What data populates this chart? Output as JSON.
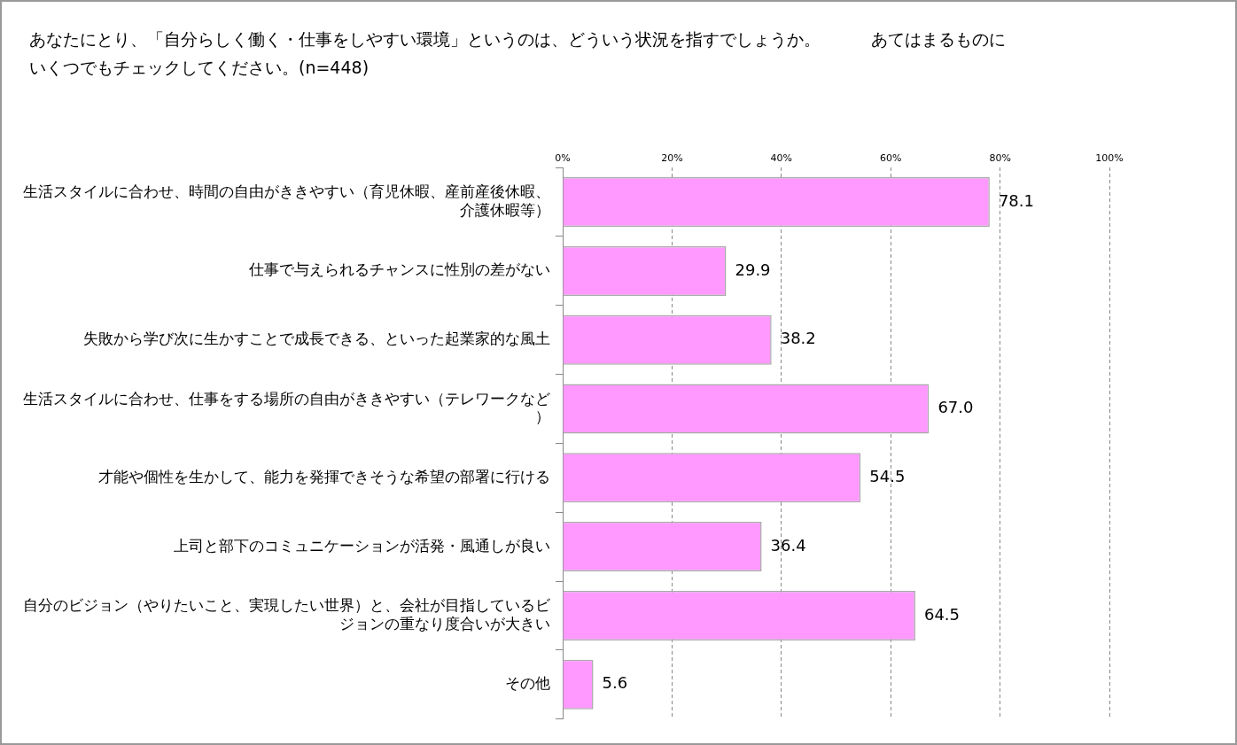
{
  "chart_data": {
    "type": "bar",
    "orientation": "horizontal",
    "title": "あなたにとり、「自分らしく働く・仕事をしやすい環境」というのは、どういう状況を指すでしょうか。　　　あてはまるものにいくつでもチェックしてください。(n=448)",
    "categories": [
      "生活スタイルに合わせ、時間の自由がききやすい（育児休暇、産前産後休暇、介護休暇等）",
      "仕事で与えられるチャンスに性別の差がない",
      "失敗から学び次に生かすことで成長できる、といった起業家的な風土",
      "生活スタイルに合わせ、仕事をする場所の自由がききやすい（テレワークなど）",
      "才能や個性を生かして、能力を発揮できそうな希望の部署に行ける",
      "上司と部下のコミュニケーションが活発・風通しが良い",
      "自分のビジョン（やりたいこと、実現したい世界）と、会社が目指しているビジョンの重なり度合いが大きい",
      "その他"
    ],
    "values": [
      78.1,
      29.9,
      38.2,
      67.0,
      54.5,
      36.4,
      64.5,
      5.6
    ],
    "value_labels": [
      "78.1",
      "29.9",
      "38.2",
      "67.0",
      "54.5",
      "36.4",
      "64.5",
      "5.6"
    ],
    "color": "#ff99ff",
    "xlim": [
      0,
      100
    ],
    "xticks": [
      {
        "value": 0,
        "label": "0%"
      },
      {
        "value": 20,
        "label": "20%"
      },
      {
        "value": 40,
        "label": "40%"
      },
      {
        "value": 60,
        "label": "60%"
      },
      {
        "value": 80,
        "label": "80%"
      },
      {
        "value": 100,
        "label": "100%"
      }
    ],
    "grid": "x",
    "legend": false
  }
}
